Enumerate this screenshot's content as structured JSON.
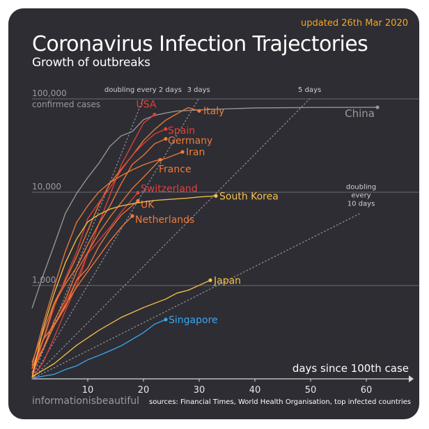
{
  "header": {
    "updated": "updated 26th Mar 2020",
    "title": "Coronavirus Infection Trajectories",
    "subtitle": "Growth of outbreaks"
  },
  "footer": {
    "brand": "informationisbeautiful",
    "sources": "sources: Financial Times, World Health Organisation, top infected countries"
  },
  "colors": {
    "background": "#2d2d33",
    "china": "#9a9a9a",
    "red": "#e0413a",
    "orange": "#f07b3a",
    "yellow": "#f8c24a",
    "blue": "#3aa8f0",
    "guide": "#8e8e96"
  },
  "chart_data": {
    "type": "line",
    "xlabel": "days since 100th case",
    "ylabel": "",
    "y_scale": "log",
    "xlim": [
      0,
      64
    ],
    "ylim": [
      100,
      150000
    ],
    "x_ticks": [
      "10",
      "20",
      "30",
      "40",
      "50",
      "60"
    ],
    "y_ticks": [
      {
        "value": 1000,
        "label": "1,000"
      },
      {
        "value": 10000,
        "label": "10,000"
      },
      {
        "value": 100000,
        "label": "100,000",
        "sublabel": "confirmed cases"
      }
    ],
    "grid": "horizontal",
    "reference_lines": [
      {
        "label": "doubling every 2 days",
        "doubling_days": 2,
        "max_value": 100000
      },
      {
        "label": "3 days",
        "doubling_days": 3,
        "max_value": 100000
      },
      {
        "label": "5 days",
        "doubling_days": 5,
        "max_value": 100000
      },
      {
        "label": "doubling\nevery\n10 days",
        "doubling_days": 10,
        "max_value": 6000
      }
    ],
    "series": [
      {
        "name": "China",
        "color": "#9a9a9a",
        "x": [
          0,
          2,
          4,
          6,
          8,
          10,
          12,
          14,
          16,
          18,
          20,
          22,
          24,
          26,
          30,
          35,
          40,
          50,
          62
        ],
        "y": [
          571,
          1287,
          2744,
          5974,
          9692,
          14380,
          20438,
          31161,
          40171,
          44653,
          59804,
          66492,
          70548,
          74185,
          76288,
          78191,
          79968,
          80904,
          81285
        ]
      },
      {
        "name": "USA",
        "color": "#e0413a",
        "x": [
          0,
          2,
          4,
          6,
          8,
          10,
          12,
          14,
          16,
          18,
          20,
          22
        ],
        "y": [
          100,
          150,
          280,
          540,
          1000,
          2200,
          4600,
          9400,
          19500,
          33000,
          55000,
          68000
        ]
      },
      {
        "name": "Italy",
        "color": "#f07b3a",
        "x": [
          0,
          2,
          4,
          6,
          8,
          10,
          12,
          14,
          16,
          18,
          20,
          22,
          24,
          26,
          28,
          30
        ],
        "y": [
          150,
          320,
          655,
          1128,
          2036,
          3858,
          7375,
          12462,
          17660,
          24747,
          35713,
          47021,
          59138,
          69176,
          80539,
          74386
        ]
      },
      {
        "name": "Spain",
        "color": "#e0413a",
        "x": [
          0,
          2,
          4,
          6,
          8,
          10,
          12,
          14,
          16,
          18,
          20,
          22,
          24
        ],
        "y": [
          114,
          257,
          589,
          1204,
          2277,
          5232,
          7753,
          11178,
          17147,
          24926,
          33089,
          42058,
          47610
        ]
      },
      {
        "name": "Germany",
        "color": "#f07b3a",
        "x": [
          0,
          2,
          4,
          6,
          8,
          10,
          12,
          14,
          16,
          18,
          20,
          22,
          24
        ],
        "y": [
          130,
          262,
          639,
          1040,
          1565,
          2745,
          4599,
          7156,
          12327,
          19848,
          24873,
          32986,
          37323
        ]
      },
      {
        "name": "Iran",
        "color": "#f07b3a",
        "x": [
          0,
          2,
          4,
          6,
          8,
          10,
          12,
          14,
          16,
          18,
          20,
          22,
          24,
          27
        ],
        "y": [
          139,
          388,
          978,
          2336,
          4747,
          7161,
          10075,
          12729,
          14991,
          17361,
          19644,
          21638,
          23049,
          27017
        ]
      },
      {
        "name": "France",
        "color": "#f07b3a",
        "x": [
          0,
          2,
          4,
          6,
          8,
          10,
          12,
          14,
          16,
          18,
          20,
          23
        ],
        "y": [
          130,
          212,
          423,
          706,
          1412,
          2281,
          3661,
          5423,
          7730,
          10995,
          14459,
          22304
        ]
      },
      {
        "name": "Switzerland",
        "color": "#e0413a",
        "x": [
          0,
          2,
          4,
          6,
          8,
          10,
          12,
          14,
          16,
          19
        ],
        "y": [
          100,
          264,
          374,
          652,
          1139,
          2200,
          3028,
          4222,
          6113,
          9877
        ]
      },
      {
        "name": "UK",
        "color": "#f07b3a",
        "x": [
          0,
          2,
          4,
          6,
          8,
          10,
          12,
          14,
          16,
          19
        ],
        "y": [
          116,
          209,
          373,
          590,
          1140,
          1543,
          2626,
          3983,
          5683,
          8077
        ]
      },
      {
        "name": "Netherlands",
        "color": "#f07b3a",
        "x": [
          0,
          2,
          4,
          6,
          8,
          10,
          12,
          14,
          16,
          18
        ],
        "y": [
          128,
          265,
          382,
          614,
          959,
          1413,
          2051,
          3003,
          4204,
          5560
        ]
      },
      {
        "name": "South Korea",
        "color": "#f8c24a",
        "x": [
          0,
          2,
          4,
          6,
          8,
          10,
          12,
          14,
          16,
          18,
          20,
          22,
          25,
          28,
          30,
          33
        ],
        "y": [
          104,
          346,
          833,
          1766,
          3150,
          4812,
          5766,
          6593,
          7134,
          7513,
          7869,
          8162,
          8413,
          8652,
          8897,
          9137
        ]
      },
      {
        "name": "Japan",
        "color": "#f8c24a",
        "x": [
          0,
          4,
          8,
          12,
          16,
          20,
          24,
          26,
          28,
          30,
          32
        ],
        "y": [
          105,
          146,
          229,
          331,
          455,
          581,
          716,
          829,
          889,
          1007,
          1140
        ]
      },
      {
        "name": "Singapore",
        "color": "#3aa8f0",
        "x": [
          0,
          4,
          6,
          8,
          10,
          12,
          14,
          16,
          18,
          20,
          22,
          24
        ],
        "y": [
          102,
          112,
          126,
          138,
          160,
          178,
          200,
          226,
          266,
          313,
          385,
          432
        ]
      }
    ]
  }
}
